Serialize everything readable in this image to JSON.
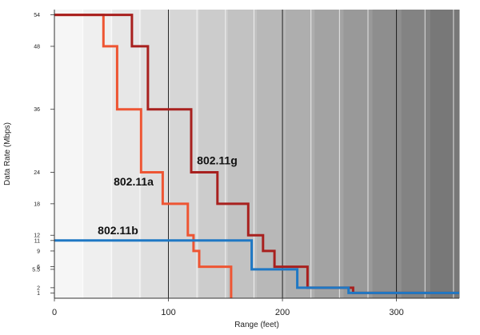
{
  "chart_data": {
    "type": "line",
    "step": true,
    "xlabel": "Range (feet)",
    "ylabel": "Data Rate (Mbps)",
    "xlim": [
      0,
      355
    ],
    "ylim": [
      0,
      55
    ],
    "x_ticks": [
      0,
      100,
      200,
      300
    ],
    "y_ticks": [
      1,
      2,
      5.5,
      6,
      9,
      11,
      12,
      18,
      24,
      36,
      48,
      54
    ],
    "y_tick_labels": [
      "1",
      "2",
      "5.5",
      "6",
      "9",
      "11",
      "12",
      "18",
      "24",
      "36",
      "48",
      "54"
    ],
    "grid": true,
    "background": "shaded gradient, light on left to dark grey on right",
    "series": [
      {
        "name": "802.11a",
        "color": "#ee5533",
        "x": [
          0,
          43,
          43,
          55,
          55,
          76,
          76,
          95,
          95,
          117,
          117,
          122,
          122,
          127,
          127,
          155,
          155
        ],
        "y": [
          54,
          54,
          48,
          48,
          36,
          36,
          24,
          24,
          18,
          18,
          12,
          12,
          9,
          9,
          6,
          6,
          0
        ]
      },
      {
        "name": "802.11g",
        "color": "#a8201e",
        "x": [
          0,
          68,
          68,
          82,
          82,
          120,
          120,
          143,
          143,
          170,
          170,
          183,
          183,
          193,
          193,
          222,
          222,
          262,
          262,
          355
        ],
        "y": [
          54,
          54,
          48,
          48,
          36,
          36,
          24,
          24,
          18,
          18,
          12,
          12,
          9,
          9,
          6,
          6,
          2,
          2,
          1,
          1
        ]
      },
      {
        "name": "802.11b",
        "color": "#1f78c4",
        "x": [
          0,
          173,
          173,
          213,
          213,
          258,
          258,
          355
        ],
        "y": [
          11,
          11,
          5.5,
          5.5,
          2,
          2,
          1,
          1
        ]
      }
    ],
    "series_labels": [
      "802.11g",
      "802.11a",
      "802.11b"
    ]
  }
}
